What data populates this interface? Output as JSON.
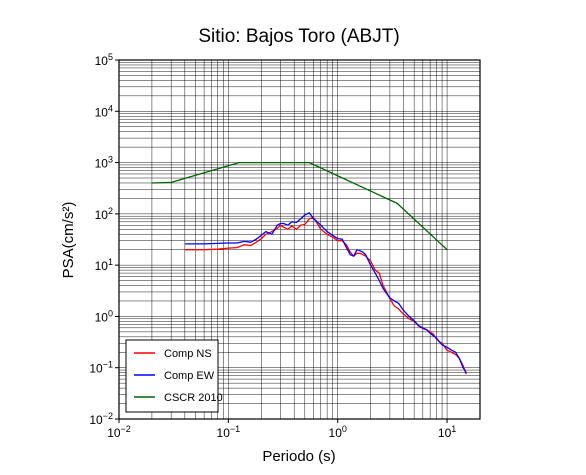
{
  "chart_data": {
    "type": "line",
    "title": "Sitio: Bajos Toro (ABJT)",
    "xlabel": "Periodo (s)",
    "ylabel": "PSA(cm/s²)",
    "xscale": "log",
    "yscale": "log",
    "xlim": [
      0.01,
      20
    ],
    "ylim": [
      0.01,
      100000
    ],
    "x_ticks": [
      {
        "base": "10",
        "exp": "−2"
      },
      {
        "base": "10",
        "exp": "−1"
      },
      {
        "base": "10",
        "exp": "0"
      },
      {
        "base": "10",
        "exp": "1"
      }
    ],
    "y_ticks": [
      {
        "base": "10",
        "exp": "−2"
      },
      {
        "base": "10",
        "exp": "−1"
      },
      {
        "base": "10",
        "exp": "0"
      },
      {
        "base": "10",
        "exp": "1"
      },
      {
        "base": "10",
        "exp": "2"
      },
      {
        "base": "10",
        "exp": "3"
      },
      {
        "base": "10",
        "exp": "4"
      },
      {
        "base": "10",
        "exp": "5"
      }
    ],
    "grid": true,
    "legend_position": "bottom-left",
    "series": [
      {
        "name": "Comp NS",
        "color": "#ff0000",
        "x": [
          0.04,
          0.06,
          0.08,
          0.1,
          0.12,
          0.14,
          0.16,
          0.18,
          0.2,
          0.22,
          0.25,
          0.28,
          0.3,
          0.32,
          0.35,
          0.38,
          0.42,
          0.46,
          0.5,
          0.55,
          0.6,
          0.65,
          0.7,
          0.8,
          0.9,
          1.0,
          1.1,
          1.2,
          1.3,
          1.4,
          1.5,
          1.6,
          1.7,
          1.8,
          2.0,
          2.2,
          2.4,
          2.6,
          2.8,
          3.0,
          3.3,
          3.6,
          4.0,
          4.5,
          5.0,
          5.5,
          6.0,
          6.5,
          7.0,
          7.5,
          8.0,
          8.5,
          9.0,
          10.0,
          11.0,
          12.0,
          13.0,
          14.0,
          15.0
        ],
        "values": [
          20,
          20,
          20.5,
          21.5,
          22,
          25,
          24,
          28,
          33,
          40,
          45,
          52,
          60,
          55,
          50,
          58,
          50,
          60,
          62,
          80,
          85,
          65,
          50,
          40,
          35,
          30,
          30,
          25,
          18,
          15,
          17,
          17,
          16,
          15,
          12,
          8,
          7,
          4,
          3,
          2.2,
          1.6,
          1.4,
          1.1,
          0.9,
          0.8,
          0.65,
          0.58,
          0.55,
          0.5,
          0.45,
          0.36,
          0.32,
          0.3,
          0.22,
          0.2,
          0.18,
          0.15,
          0.11,
          0.075
        ]
      },
      {
        "name": "Comp EW",
        "color": "#0000ff",
        "x": [
          0.04,
          0.06,
          0.08,
          0.1,
          0.12,
          0.14,
          0.16,
          0.18,
          0.2,
          0.22,
          0.25,
          0.28,
          0.3,
          0.32,
          0.35,
          0.38,
          0.42,
          0.46,
          0.5,
          0.55,
          0.6,
          0.65,
          0.7,
          0.8,
          0.9,
          1.0,
          1.1,
          1.2,
          1.3,
          1.4,
          1.5,
          1.6,
          1.7,
          1.8,
          2.0,
          2.2,
          2.4,
          2.6,
          2.8,
          3.0,
          3.3,
          3.6,
          4.0,
          4.5,
          5.0,
          5.5,
          6.0,
          6.5,
          7.0,
          7.5,
          8.0,
          8.5,
          9.0,
          10.0,
          11.0,
          12.0,
          13.0,
          14.0,
          15.0
        ],
        "values": [
          26,
          26,
          26.5,
          27,
          27,
          29,
          28,
          32,
          38,
          45,
          40,
          60,
          65,
          65,
          60,
          70,
          68,
          80,
          95,
          105,
          80,
          70,
          60,
          45,
          38,
          33,
          32,
          22,
          16,
          15,
          20,
          19,
          18,
          16,
          10,
          7,
          5,
          3.5,
          2.8,
          2.3,
          2.0,
          1.8,
          1.3,
          1.0,
          0.82,
          0.66,
          0.6,
          0.55,
          0.47,
          0.42,
          0.38,
          0.32,
          0.28,
          0.25,
          0.22,
          0.2,
          0.15,
          0.1,
          0.08
        ]
      },
      {
        "name": "CSCR 2010",
        "color": "#006400",
        "x": [
          0.02,
          0.03,
          0.125,
          0.55,
          3.5,
          10
        ],
        "values": [
          400,
          410,
          1000,
          1000,
          160,
          20
        ]
      }
    ]
  }
}
